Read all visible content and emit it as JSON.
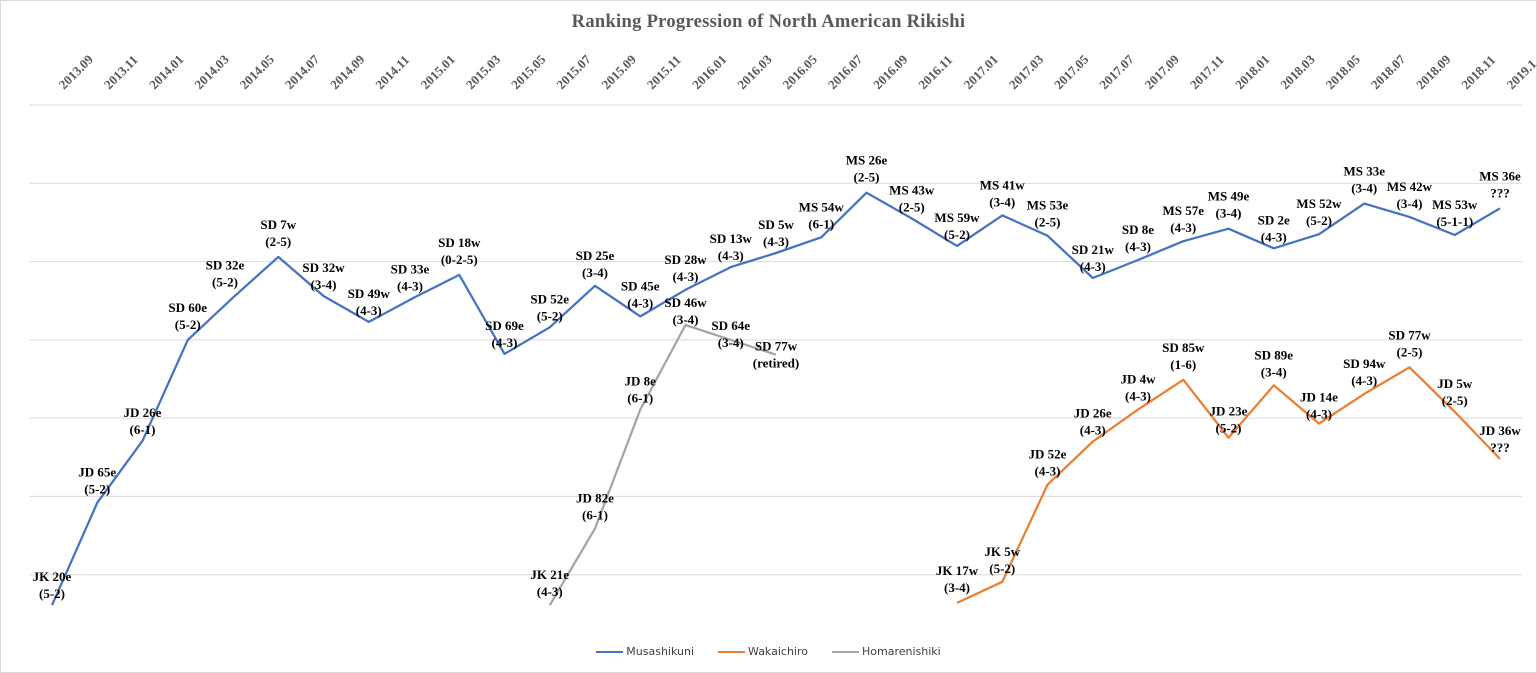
{
  "chart_data": {
    "type": "line",
    "title": "Ranking Progression of North American Rikishi",
    "xlabel": "",
    "ylabel": "",
    "y_axis_note": "inverted rank scale (higher rank at top); values estimated from gridlines, 0 = top gridline, 700 = bottom of plot",
    "ylim": [
      0,
      700
    ],
    "grid": true,
    "legend_position": "bottom",
    "categories": [
      "2013.09",
      "2013.11",
      "2014.01",
      "2014.03",
      "2014.05",
      "2014.07",
      "2014.09",
      "2014.11",
      "2015.01",
      "2015.03",
      "2015.05",
      "2015.07",
      "2015.09",
      "2015.11",
      "2016.01",
      "2016.03",
      "2016.05",
      "2016.07",
      "2016.09",
      "2016.11",
      "2017.01",
      "2017.03",
      "2017.05",
      "2017.07",
      "2017.09",
      "2017.11",
      "2018.01",
      "2018.03",
      "2018.05",
      "2018.07",
      "2018.09",
      "2018.11",
      "2019.1"
    ],
    "series": [
      {
        "name": "Musashikuni",
        "color": "#4472c4",
        "start_index": 0,
        "values": [
          639,
          508,
          429,
          300,
          246,
          194,
          244,
          277,
          246,
          217,
          318,
          284,
          231,
          270,
          236,
          207,
          189,
          169,
          112,
          145,
          180,
          141,
          167,
          221,
          198,
          174,
          158,
          183,
          165,
          126,
          143,
          166,
          132
        ],
        "labels": [
          {
            "rank": "JK 20e",
            "record": "(5-2)"
          },
          {
            "rank": "JD 65e",
            "record": "(5-2)"
          },
          {
            "rank": "JD 26e",
            "record": "(6-1)"
          },
          {
            "rank": "SD 60e",
            "record": "(5-2)"
          },
          {
            "rank": "SD 32e",
            "record": "(5-2)"
          },
          {
            "rank": "SD 7w",
            "record": "(2-5)"
          },
          {
            "rank": "SD 32w",
            "record": "(3-4)"
          },
          {
            "rank": "SD 49w",
            "record": "(4-3)"
          },
          {
            "rank": "SD 33e",
            "record": "(4-3)"
          },
          {
            "rank": "SD 18w",
            "record": "(0-2-5)"
          },
          {
            "rank": "SD 69e",
            "record": "(4-3)"
          },
          {
            "rank": "SD 52e",
            "record": "(5-2)"
          },
          {
            "rank": "SD 25e",
            "record": "(3-4)"
          },
          {
            "rank": "SD 45e",
            "record": "(4-3)"
          },
          {
            "rank": "SD 28w",
            "record": "(4-3)"
          },
          {
            "rank": "SD 13w",
            "record": "(4-3)"
          },
          {
            "rank": "SD 5w",
            "record": "(4-3)"
          },
          {
            "rank": "MS 54w",
            "record": "(6-1)"
          },
          {
            "rank": "MS 26e",
            "record": "(2-5)"
          },
          {
            "rank": "MS 43w",
            "record": "(2-5)"
          },
          {
            "rank": "MS 59w",
            "record": "(5-2)"
          },
          {
            "rank": "MS 41w",
            "record": "(3-4)"
          },
          {
            "rank": "MS 53e",
            "record": "(2-5)"
          },
          {
            "rank": "SD 21w",
            "record": "(4-3)"
          },
          {
            "rank": "SD 8e",
            "record": "(4-3)"
          },
          {
            "rank": "MS 57e",
            "record": "(4-3)"
          },
          {
            "rank": "MS 49e",
            "record": "(3-4)"
          },
          {
            "rank": "SD 2e",
            "record": "(4-3)"
          },
          {
            "rank": "MS 52w",
            "record": "(5-2)"
          },
          {
            "rank": "MS 33e",
            "record": "(3-4)"
          },
          {
            "rank": "MS 42w",
            "record": "(3-4)"
          },
          {
            "rank": "MS 53w",
            "record": "(5-1-1)"
          },
          {
            "rank": "MS 36e",
            "record": "???"
          }
        ]
      },
      {
        "name": "Wakaichiro",
        "color": "#ed7d31",
        "start_index": 20,
        "values": [
          636,
          609,
          485,
          430,
          389,
          351,
          425,
          358,
          407,
          369,
          335,
          392,
          452
        ],
        "labels": [
          {
            "rank": "JK 17w",
            "record": "(3-4)"
          },
          {
            "rank": "JK 5w",
            "record": "(5-2)"
          },
          {
            "rank": "JD 52e",
            "record": "(4-3)"
          },
          {
            "rank": "JD 26e",
            "record": "(4-3)"
          },
          {
            "rank": "JD 4w",
            "record": "(4-3)"
          },
          {
            "rank": "SD 85w",
            "record": "(1-6)"
          },
          {
            "rank": "JD 23e",
            "record": "(5-2)"
          },
          {
            "rank": "SD 89e",
            "record": "(3-4)"
          },
          {
            "rank": "JD 14e",
            "record": "(4-3)"
          },
          {
            "rank": "SD 94w",
            "record": "(4-3)"
          },
          {
            "rank": "SD 77w",
            "record": "(2-5)"
          },
          {
            "rank": "JD 5w",
            "record": "(2-5)"
          },
          {
            "rank": "JD 36w",
            "record": "???"
          }
        ]
      },
      {
        "name": "Homarenishiki",
        "color": "#a5a5a5",
        "start_index": 11,
        "values": [
          639,
          541,
          389,
          281,
          300,
          319
        ],
        "labels": [
          {
            "rank": "JK 21e",
            "record": "(4-3)"
          },
          {
            "rank": "JD 82e",
            "record": "(6-1)"
          },
          {
            "rank": "JD 8e",
            "record": "(6-1)"
          },
          {
            "rank": "SD 46w",
            "record": "(3-4)"
          },
          {
            "rank": "SD 64e",
            "record": "(3-4)"
          },
          {
            "rank": "SD 77w",
            "record": "(retired)"
          }
        ]
      }
    ]
  }
}
